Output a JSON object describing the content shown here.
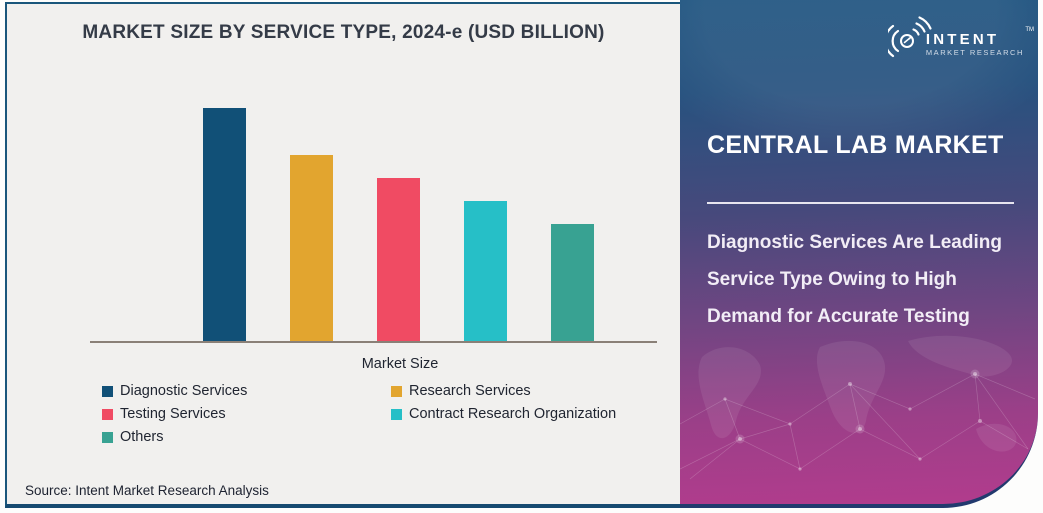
{
  "chart": {
    "title": "MARKET SIZE BY SERVICE TYPE, 2024-e (USD BILLION)",
    "x_axis_label": "Market Size",
    "source": "Source: Intent Market Research Analysis",
    "background_color": "#f1f0ee",
    "axis_color": "#8a8077",
    "series": [
      {
        "label": "Diagnostic Services",
        "value": 100,
        "color": "#115077"
      },
      {
        "label": "Research Services",
        "value": 80,
        "color": "#e2a52f"
      },
      {
        "label": "Testing Services",
        "value": 70,
        "color": "#f04b63"
      },
      {
        "label": "Contract Research Organization",
        "value": 60,
        "color": "#26bfc7"
      },
      {
        "label": "Others",
        "value": 50,
        "color": "#38a292"
      }
    ]
  },
  "chart_data": {
    "type": "bar",
    "title": "MARKET SIZE BY SERVICE TYPE, 2024-e (USD BILLION)",
    "categories": [
      "Diagnostic Services",
      "Research Services",
      "Testing Services",
      "Contract Research Organization",
      "Others"
    ],
    "values": [
      100,
      80,
      70,
      60,
      50
    ],
    "values_note": "No numeric value axis is shown in the figure; values are relative bar heights with the tallest bar normalized to 100.",
    "xlabel": "Market Size",
    "ylabel": "",
    "grid": false,
    "legend_position": "bottom",
    "colors": [
      "#115077",
      "#e2a52f",
      "#f04b63",
      "#26bfc7",
      "#38a292"
    ]
  },
  "panel": {
    "title": "CENTRAL LAB MARKET",
    "headline": "Diagnostic Services Are Leading Service Type Owing to High Demand for Accurate Testing",
    "gradient_colors": [
      "#1f5480",
      "#47497c",
      "#9b3f88",
      "#b23c8d"
    ],
    "logo": {
      "brand": "INTENT",
      "trademark": "TM",
      "subtitle": "MARKET RESEARCH"
    }
  }
}
